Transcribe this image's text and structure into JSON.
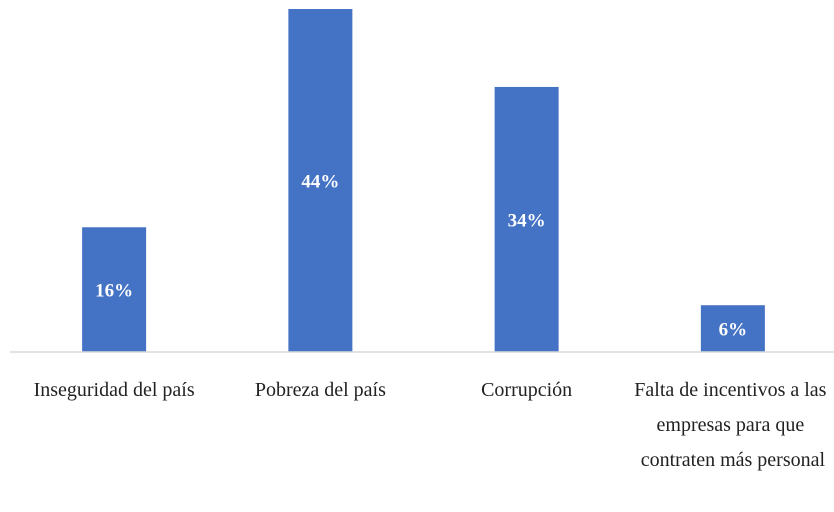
{
  "chart_data": {
    "type": "bar",
    "categories": [
      "Inseguridad del país",
      "Pobreza del país",
      "Corrupción",
      "Falta de incentivos a las empresas para que contraten más personal"
    ],
    "values": [
      16,
      44,
      34,
      6
    ],
    "value_labels": [
      "16%",
      "44%",
      "34%",
      "6%"
    ],
    "color": "#4472c4",
    "ylim": [
      0,
      44
    ]
  }
}
